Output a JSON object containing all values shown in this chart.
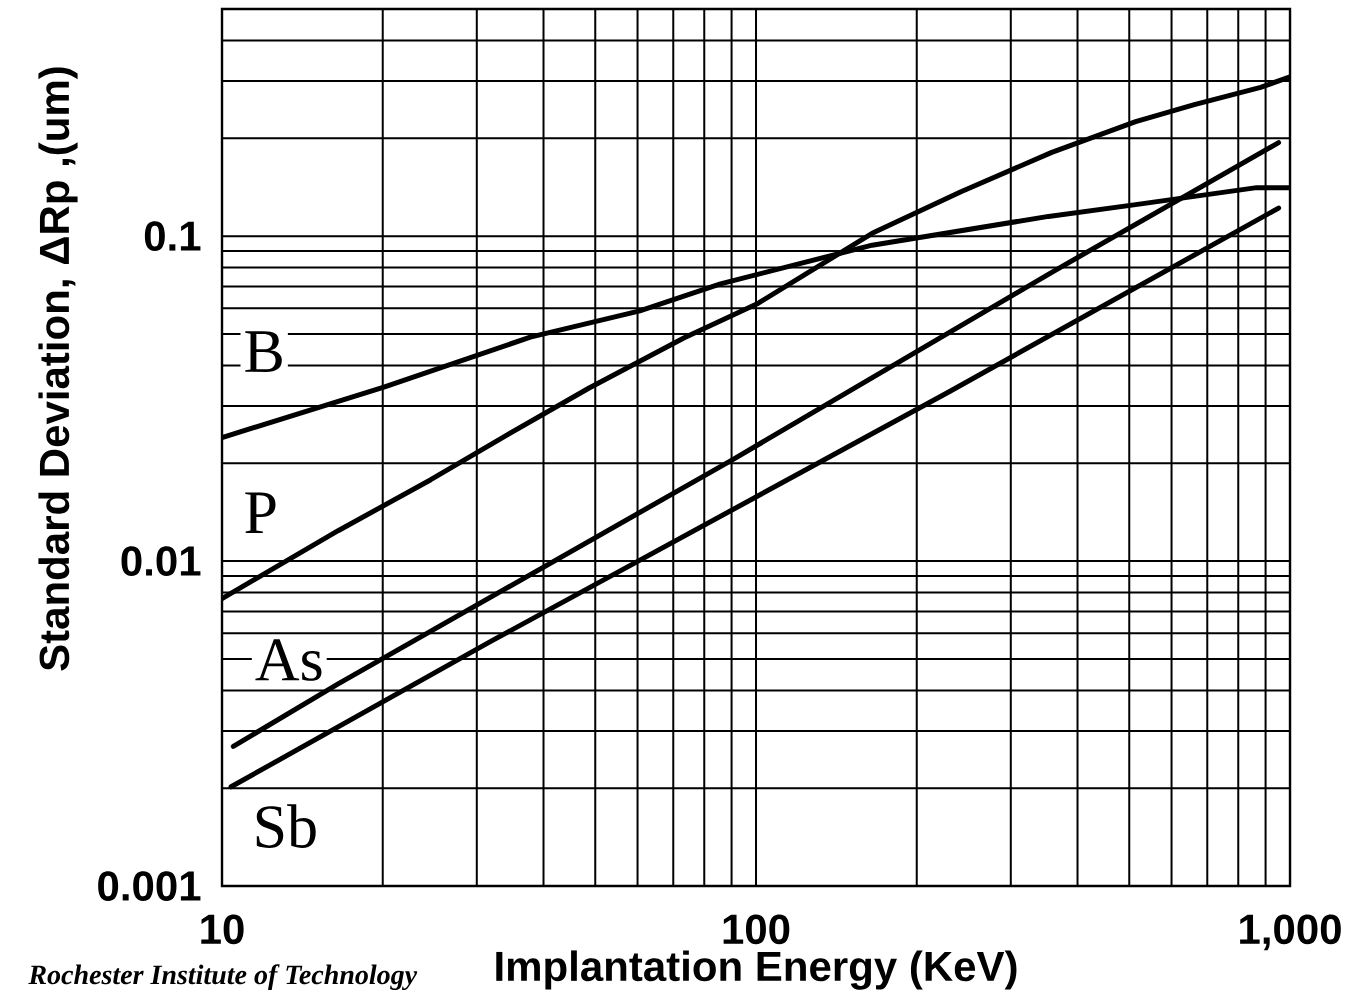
{
  "chart_data": {
    "type": "line",
    "xlabel": "Implantation Energy (KeV)",
    "ylabel": "Standard Deviation, ΔRp ,(um)",
    "annotations": [
      "Rochester Institute of Technology"
    ],
    "log": "xy",
    "xlim": [
      10,
      1000
    ],
    "ylim": [
      0.001,
      0.5
    ],
    "xticks": [
      10,
      100,
      {
        "value": 1000,
        "label": "1,000"
      }
    ],
    "yticks": [
      0.001,
      0.01,
      0.1
    ],
    "grid": true,
    "marker": "none",
    "line_style": "solid",
    "series": [
      {
        "name": "B",
        "color": "#000000",
        "x": [
          10,
          20.1,
          37.8,
          60.6,
          85.8,
          165,
          353,
          514,
          866,
          1000
        ],
        "values": [
          0.024,
          0.0343,
          0.0489,
          0.0589,
          0.0713,
          0.0938,
          0.115,
          0.125,
          0.141,
          0.141
        ]
      },
      {
        "name": "P",
        "color": "#000000",
        "x": [
          10,
          16.5,
          24.6,
          34.4,
          48.7,
          73.4,
          101,
          165,
          242,
          358,
          514,
          662,
          881,
          1000
        ],
        "values": [
          0.00767,
          0.0124,
          0.0178,
          0.0246,
          0.0341,
          0.0487,
          0.0622,
          0.102,
          0.137,
          0.181,
          0.225,
          0.254,
          0.287,
          0.309
        ]
      },
      {
        "name": "As",
        "color": "#000000",
        "x": [
          10.5,
          16.5,
          90.8,
          358,
          952
        ],
        "values": [
          0.00269,
          0.00419,
          0.0206,
          0.0774,
          0.194
        ]
      },
      {
        "name": "Sb",
        "color": "#000000",
        "x": [
          10.4,
          31.8,
          230,
          952
        ],
        "values": [
          0.00202,
          0.00565,
          0.0332,
          0.122
        ]
      }
    ]
  }
}
